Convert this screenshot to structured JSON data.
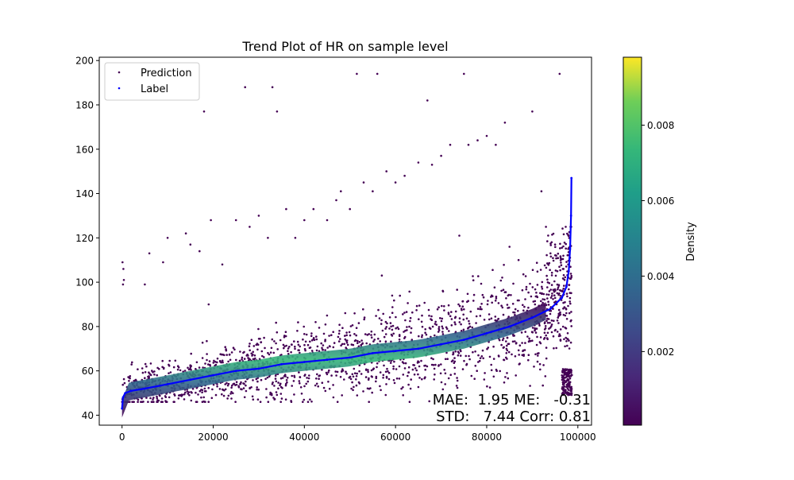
{
  "chart_data": {
    "type": "scatter",
    "title": "Trend Plot of HR on sample level",
    "xlabel": "",
    "ylabel": "",
    "xlim": [
      -5000,
      103000
    ],
    "ylim": [
      35.5,
      201.5
    ],
    "xticks": [
      0,
      20000,
      40000,
      60000,
      80000,
      100000
    ],
    "yticks": [
      40,
      60,
      80,
      100,
      120,
      140,
      160,
      180,
      200
    ],
    "legend_position": "upper-left",
    "legend": [
      {
        "name": "Prediction",
        "color": "#440154"
      },
      {
        "name": "Label",
        "color": "#0000ff"
      }
    ],
    "series": [
      {
        "name": "Label",
        "color": "#0000ff",
        "points": [
          [
            0,
            43
          ],
          [
            200,
            48
          ],
          [
            700,
            50
          ],
          [
            2000,
            51
          ],
          [
            5000,
            52
          ],
          [
            10000,
            54
          ],
          [
            15000,
            56
          ],
          [
            20000,
            58
          ],
          [
            25000,
            60
          ],
          [
            30000,
            61
          ],
          [
            35000,
            63
          ],
          [
            40000,
            64
          ],
          [
            45000,
            65
          ],
          [
            50000,
            66
          ],
          [
            55000,
            68
          ],
          [
            60000,
            69
          ],
          [
            65000,
            70
          ],
          [
            70000,
            72
          ],
          [
            75000,
            74
          ],
          [
            80000,
            77
          ],
          [
            85000,
            80
          ],
          [
            90000,
            84
          ],
          [
            94000,
            88
          ],
          [
            96500,
            93
          ],
          [
            97500,
            98
          ],
          [
            98000,
            105
          ],
          [
            98300,
            115
          ],
          [
            98500,
            130
          ],
          [
            98600,
            147
          ]
        ]
      },
      {
        "name": "Prediction",
        "color": "#440154",
        "outliers": [
          [
            100,
            109
          ],
          [
            200,
            99
          ],
          [
            300,
            106
          ],
          [
            400,
            101
          ],
          [
            5000,
            99
          ],
          [
            6000,
            113
          ],
          [
            9000,
            109
          ],
          [
            10000,
            120
          ],
          [
            14000,
            122
          ],
          [
            15000,
            117
          ],
          [
            17000,
            114
          ],
          [
            18000,
            177
          ],
          [
            19000,
            90
          ],
          [
            19500,
            128
          ],
          [
            22000,
            108
          ],
          [
            25000,
            128
          ],
          [
            27000,
            188
          ],
          [
            28000,
            125
          ],
          [
            30000,
            130
          ],
          [
            32000,
            120
          ],
          [
            33000,
            188
          ],
          [
            34000,
            177
          ],
          [
            36000,
            133
          ],
          [
            38000,
            120
          ],
          [
            40000,
            128
          ],
          [
            42000,
            133
          ],
          [
            45000,
            128
          ],
          [
            47000,
            137
          ],
          [
            48000,
            141
          ],
          [
            50000,
            133
          ],
          [
            51500,
            194
          ],
          [
            53000,
            145
          ],
          [
            55000,
            141
          ],
          [
            56000,
            194
          ],
          [
            57000,
            103
          ],
          [
            58000,
            150
          ],
          [
            60000,
            145
          ],
          [
            62000,
            148
          ],
          [
            65000,
            154
          ],
          [
            67000,
            182
          ],
          [
            68000,
            153
          ],
          [
            70000,
            157
          ],
          [
            72000,
            162
          ],
          [
            74000,
            121
          ],
          [
            75000,
            194
          ],
          [
            76000,
            162
          ],
          [
            78000,
            164
          ],
          [
            80000,
            166
          ],
          [
            82000,
            162
          ],
          [
            84000,
            172
          ],
          [
            85000,
            116
          ],
          [
            87000,
            110
          ],
          [
            90000,
            177
          ],
          [
            92000,
            141
          ],
          [
            93000,
            125
          ],
          [
            94000,
            113
          ],
          [
            95000,
            117
          ],
          [
            96000,
            194
          ]
        ]
      }
    ],
    "colorbar": {
      "label": "Density",
      "ticks": [
        0.002,
        0.004,
        0.006,
        0.008
      ],
      "min": 5e-05,
      "max": 0.0098,
      "colormap": "viridis"
    },
    "annotations": {
      "line1": "MAE:  1.95 ME:   -0.31",
      "line2": "STD:   7.44 Corr: 0.81"
    },
    "stats": {
      "MAE": 1.95,
      "ME": -0.31,
      "STD": 7.44,
      "Corr": 0.81
    }
  }
}
